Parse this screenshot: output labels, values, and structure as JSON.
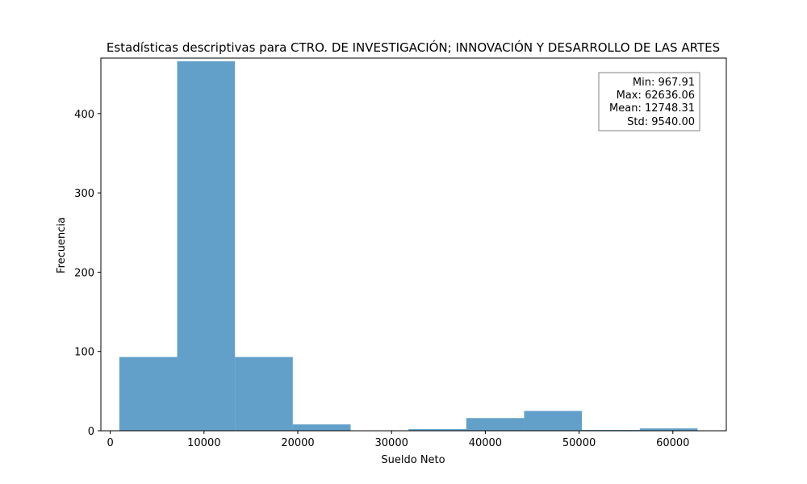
{
  "chart_data": {
    "type": "bar",
    "title": "Estadísticas descriptivas para CTRO. DE INVESTIGACIÓN; INNOVACIÓN Y DESARROLLO DE LAS ARTES",
    "xlabel": "Sueldo Neto",
    "ylabel": "Frecuencia",
    "xlim": [
      -1000,
      65700
    ],
    "ylim": [
      0,
      470
    ],
    "xticks": [
      0,
      10000,
      20000,
      30000,
      40000,
      50000,
      60000
    ],
    "xtick_labels": [
      "0",
      "10000",
      "20000",
      "30000",
      "40000",
      "50000",
      "60000"
    ],
    "yticks": [
      0,
      100,
      200,
      300,
      400
    ],
    "ytick_labels": [
      "0",
      "100",
      "200",
      "300",
      "400"
    ],
    "bin_edges": [
      967.91,
      7134.72,
      13301.54,
      19468.35,
      25635.17,
      31801.98,
      37968.8,
      44135.61,
      50302.43,
      56469.24,
      62636.06
    ],
    "counts": [
      93,
      466,
      93,
      8,
      0,
      2,
      16,
      25,
      1,
      3
    ],
    "bar_color": "#1f77b4",
    "bar_opacity": 0.7,
    "grid": false,
    "stats_box": {
      "lines": [
        "Min: 967.91",
        "Max: 62636.06",
        "Mean: 12748.31",
        "Std: 9540.00"
      ],
      "placement": "top-right"
    }
  }
}
